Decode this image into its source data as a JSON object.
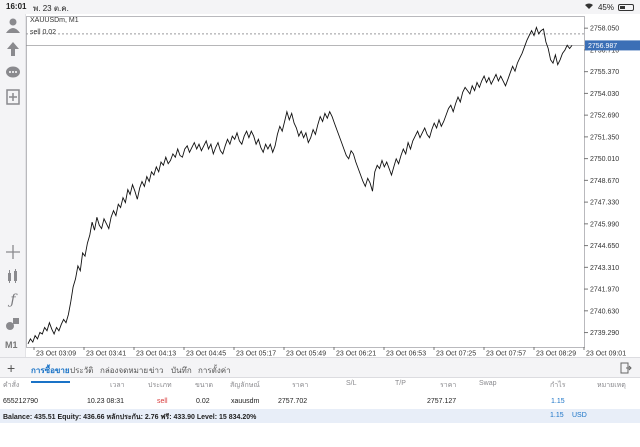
{
  "status_bar": {
    "time": "16:01",
    "date": "พ. 23 ต.ค.",
    "battery": "45%",
    "battery_level": 0.45
  },
  "chart": {
    "symbol": "XAUUSDm, M1",
    "order_label": "sell 0.02",
    "current_price": "2756.987",
    "price_ticks": [
      "2758.050",
      "2756.710",
      "2755.370",
      "2754.030",
      "2752.690",
      "2751.350",
      "2750.010",
      "2748.670",
      "2747.330",
      "2745.990",
      "2744.650",
      "2743.310",
      "2741.970",
      "2740.630",
      "2739.290"
    ],
    "time_ticks": [
      "23 Oct 03:09",
      "23 Oct 03:41",
      "23 Oct 04:13",
      "23 Oct 04:45",
      "23 Oct 05:17",
      "23 Oct 05:49",
      "23 Oct 06:21",
      "23 Oct 06:53",
      "23 Oct 07:25",
      "23 Oct 07:57",
      "23 Oct 08:29",
      "23 Oct 09:01"
    ],
    "accent": "#3b6fb6"
  },
  "chart_data": {
    "type": "line",
    "title": "",
    "xlabel": "",
    "ylabel": "",
    "ylim": [
      2738.4,
      2758.8
    ],
    "levels": {
      "order_price": 2757.702,
      "current_price": 2756.987
    },
    "series": [
      {
        "values": [
          2738.6,
          2738.9,
          2738.7,
          2739.1,
          2738.9,
          2739.3,
          2739.2,
          2739.6,
          2739.4,
          2739.9,
          2739.5,
          2739.2,
          2739.6,
          2739.4,
          2739.8,
          2740.1,
          2739.9,
          2740.4,
          2741.2,
          2742.1,
          2742.6,
          2743.4,
          2743.1,
          2744.2,
          2744.0,
          2744.8,
          2745.3,
          2746.1,
          2745.6,
          2746.4,
          2745.9,
          2745.7,
          2746.3,
          2746.0,
          2745.7,
          2746.4,
          2746.8,
          2746.5,
          2747.2,
          2747.0,
          2747.6,
          2747.3,
          2748.1,
          2747.8,
          2748.4,
          2748.0,
          2747.5,
          2748.2,
          2748.6,
          2748.3,
          2748.9,
          2748.6,
          2749.2,
          2749.0,
          2749.5,
          2749.2,
          2749.8,
          2749.6,
          2750.1,
          2749.7,
          2749.9,
          2750.3,
          2750.1,
          2750.6,
          2750.2,
          2750.1,
          2750.6,
          2750.8,
          2750.4,
          2750.7,
          2751.0,
          2750.6,
          2750.9,
          2750.5,
          2750.8,
          2751.1,
          2750.6,
          2750.9,
          2750.3,
          2750.7,
          2751.0,
          2750.5,
          2750.3,
          2750.8,
          2751.2,
          2750.9,
          2751.4,
          2751.2,
          2751.6,
          2751.1,
          2750.9,
          2751.4,
          2751.7,
          2751.3,
          2751.7,
          2751.4,
          2750.9,
          2751.2,
          2750.7,
          2750.4,
          2750.9,
          2750.6,
          2750.9,
          2750.4,
          2750.8,
          2751.5,
          2752.0,
          2751.7,
          2752.3,
          2752.9,
          2752.4,
          2752.8,
          2752.2,
          2751.9,
          2751.4,
          2751.7,
          2751.3,
          2751.6,
          2751.0,
          2751.3,
          2751.8,
          2751.5,
          2752.1,
          2752.6,
          2752.3,
          2752.8,
          2752.5,
          2752.9,
          2752.6,
          2752.2,
          2751.8,
          2751.4,
          2751.0,
          2750.6,
          2750.2,
          2750.0,
          2750.5,
          2750.3,
          2749.8,
          2749.4,
          2749.0,
          2748.6,
          2748.3,
          2748.8,
          2748.5,
          2748.0,
          2749.2,
          2749.6,
          2749.4,
          2749.9,
          2749.5,
          2749.8,
          2749.4,
          2749.0,
          2749.5,
          2750.0,
          2749.7,
          2750.2,
          2750.6,
          2750.3,
          2751.0,
          2750.6,
          2751.1,
          2751.4,
          2751.7,
          2751.3,
          2751.6,
          2751.9,
          2751.5,
          2751.3,
          2751.8,
          2752.2,
          2751.9,
          2752.4,
          2752.0,
          2752.3,
          2752.7,
          2753.1,
          2753.3,
          2752.9,
          2753.4,
          2753.8,
          2753.5,
          2754.1,
          2754.4,
          2754.2,
          2754.0,
          2754.5,
          2754.2,
          2754.7,
          2754.4,
          2754.8,
          2755.1,
          2754.7,
          2755.0,
          2754.6,
          2754.9,
          2755.2,
          2754.8,
          2755.1,
          2754.8,
          2754.5,
          2754.9,
          2755.3,
          2755.7,
          2755.4,
          2755.9,
          2756.2,
          2756.5,
          2756.9,
          2757.3,
          2757.6,
          2757.9,
          2757.6,
          2758.1,
          2757.7,
          2757.9,
          2758.0,
          2757.2,
          2756.8,
          2756.1,
          2755.9,
          2756.4,
          2755.8,
          2756.1,
          2756.5,
          2756.7,
          2757.0,
          2756.8,
          2756.99
        ]
      }
    ]
  },
  "left_toolbar": {
    "period_label": "M1"
  },
  "tabs": [
    "การซื้อขาย",
    "ประวัติ",
    "กล่องจดหมาย",
    "ข่าว",
    "บันทึก",
    "การตั้งค่า"
  ],
  "table": {
    "headers": [
      "คำสั่ง",
      "เวลา",
      "ประเภท",
      "ขนาด",
      "สัญลักษณ์",
      "ราคา",
      "S/L",
      "T/P",
      "ราคา",
      "Swap",
      "กำไร",
      "หมายเหตุ"
    ],
    "row": {
      "order": "655212790",
      "time": "10.23 08:31",
      "type": "sell",
      "size": "0.02",
      "symbol": "xauusdm",
      "price": "2757.702",
      "sl": "",
      "tp": "",
      "cur_price": "2757.127",
      "swap": "",
      "profit": "1.15",
      "note": ""
    },
    "colors": {
      "sell": "#d83a3a",
      "profit": "#1a73c7"
    }
  },
  "balance": {
    "text": "Balance: 435.51  Equity: 436.66  หลักประกัน: 2.76  ฟรี: 433.90  Level: 15 834.20%",
    "profit": "1.15",
    "currency": "USD"
  }
}
